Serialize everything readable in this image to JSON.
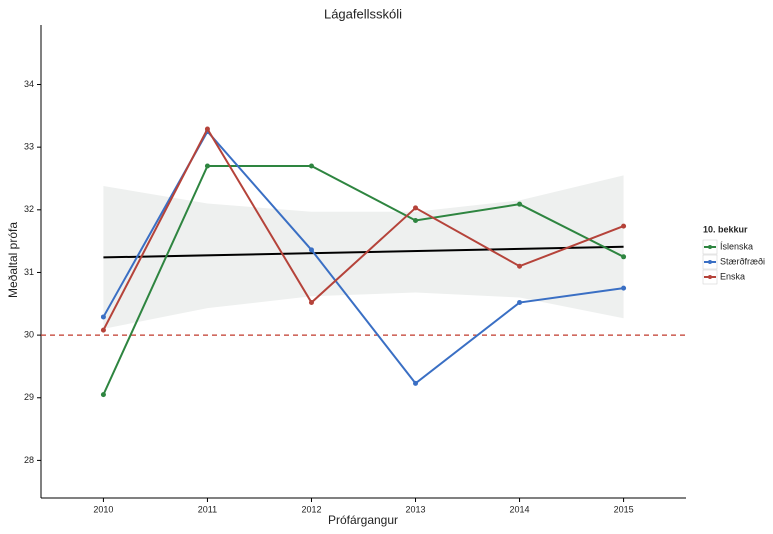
{
  "chart_data": {
    "type": "line",
    "title": "Lágafellsskóli",
    "x_label": "Prófárgangur",
    "y_label": "Meðaltal prófa",
    "x": [
      2010,
      2011,
      2012,
      2013,
      2014,
      2015
    ],
    "series": [
      {
        "name": "Íslenska",
        "color": "#2e8540",
        "values": [
          29.05,
          32.7,
          32.7,
          31.83,
          32.09,
          31.25
        ]
      },
      {
        "name": "Stærðfræði",
        "color": "#3a6fc4",
        "values": [
          30.29,
          33.25,
          31.36,
          29.23,
          30.52,
          30.75
        ]
      },
      {
        "name": "Enska",
        "color": "#b5433a",
        "values": [
          30.08,
          33.29,
          30.52,
          32.03,
          31.1,
          31.74
        ]
      }
    ],
    "trend_line": {
      "x": [
        2010,
        2015
      ],
      "values": [
        31.24,
        31.41
      ],
      "color": "#000000"
    },
    "confidence_band": {
      "x": [
        2010,
        2011,
        2012,
        2013,
        2014,
        2015
      ],
      "upper": [
        32.38,
        32.1,
        31.97,
        31.97,
        32.15,
        32.55
      ],
      "lower": [
        30.1,
        30.43,
        30.62,
        30.68,
        30.6,
        30.27
      ],
      "color": "#eef0ef"
    },
    "reference_line": {
      "value": 30,
      "color": "#c0392b"
    },
    "legend_title": "10. bekkur",
    "legend_position": "right",
    "xlim": [
      2009.4,
      2015.6
    ],
    "ylim": [
      27.4,
      34.95
    ],
    "xticks": [
      2010,
      2011,
      2012,
      2013,
      2014,
      2015
    ],
    "yticks": [
      28,
      29,
      30,
      31,
      32,
      33,
      34
    ]
  }
}
